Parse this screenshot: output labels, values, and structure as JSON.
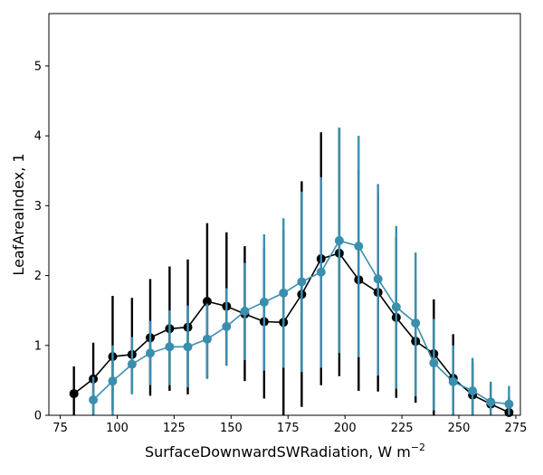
{
  "chart_data": {
    "type": "line",
    "title": "",
    "xlabel": "SurfaceDownwardSWRadiation,  W m",
    "xlabel_superscript": "−2",
    "ylabel": "LeafAreaIndex,  1",
    "xlim": [
      70,
      277
    ],
    "ylim": [
      0,
      5.75
    ],
    "xticks": [
      75,
      100,
      125,
      150,
      175,
      200,
      225,
      250,
      275
    ],
    "yticks": [
      0,
      1,
      2,
      3,
      4,
      5
    ],
    "grid": false,
    "legend": "none",
    "series": [
      {
        "color": "#000000",
        "x": [
          81,
          89.5,
          98,
          106.5,
          114.5,
          123,
          131,
          139.5,
          148,
          156,
          164.5,
          173,
          181,
          189.5,
          197.5,
          206,
          214.5,
          222.5,
          231,
          239,
          247.5,
          256,
          264,
          272
        ],
        "y": [
          0.31,
          0.52,
          0.84,
          0.87,
          1.11,
          1.24,
          1.26,
          1.63,
          1.56,
          1.45,
          1.34,
          1.33,
          1.73,
          2.24,
          2.32,
          1.94,
          1.76,
          1.4,
          1.06,
          0.88,
          0.53,
          0.29,
          0.16,
          0.04
        ],
        "err_low": [
          0.0,
          0.0,
          0.07,
          0.31,
          0.28,
          0.35,
          0.3,
          0.53,
          0.71,
          0.49,
          0.24,
          0.0,
          0.12,
          0.43,
          0.56,
          0.35,
          0.34,
          0.25,
          0.18,
          0.0,
          0.0,
          0.0,
          0.0,
          0.0
        ],
        "err_high": [
          0.7,
          1.04,
          1.71,
          1.68,
          1.95,
          2.13,
          2.23,
          2.75,
          2.62,
          2.42,
          2.4,
          2.66,
          3.35,
          4.05,
          4.1,
          3.52,
          3.18,
          2.55,
          1.93,
          1.66,
          1.16,
          0.76,
          0.48,
          0.25
        ]
      },
      {
        "color": "#3a8fae",
        "x": [
          89.5,
          98,
          106.5,
          114.5,
          123,
          131,
          139.5,
          148,
          156,
          164.5,
          173,
          181,
          189.5,
          197.5,
          206,
          214.5,
          222.5,
          231,
          239,
          247.5,
          256,
          264,
          272
        ],
        "y": [
          0.22,
          0.49,
          0.73,
          0.89,
          0.98,
          0.98,
          1.09,
          1.27,
          1.49,
          1.62,
          1.75,
          1.91,
          2.05,
          2.5,
          2.42,
          1.95,
          1.55,
          1.32,
          0.75,
          0.48,
          0.35,
          0.19,
          0.16
        ],
        "err_low": [
          0.0,
          0.0,
          0.3,
          0.43,
          0.43,
          0.4,
          0.52,
          0.71,
          0.79,
          0.64,
          0.68,
          0.62,
          0.68,
          0.89,
          0.83,
          0.57,
          0.38,
          0.27,
          0.07,
          0.0,
          0.0,
          0.0,
          0.0
        ],
        "err_high": [
          0.55,
          1.0,
          1.12,
          1.35,
          1.5,
          1.57,
          1.6,
          1.82,
          2.18,
          2.59,
          2.82,
          3.2,
          3.41,
          4.12,
          4.0,
          3.31,
          2.71,
          2.33,
          1.38,
          1.0,
          0.82,
          0.48,
          0.42
        ]
      }
    ]
  }
}
